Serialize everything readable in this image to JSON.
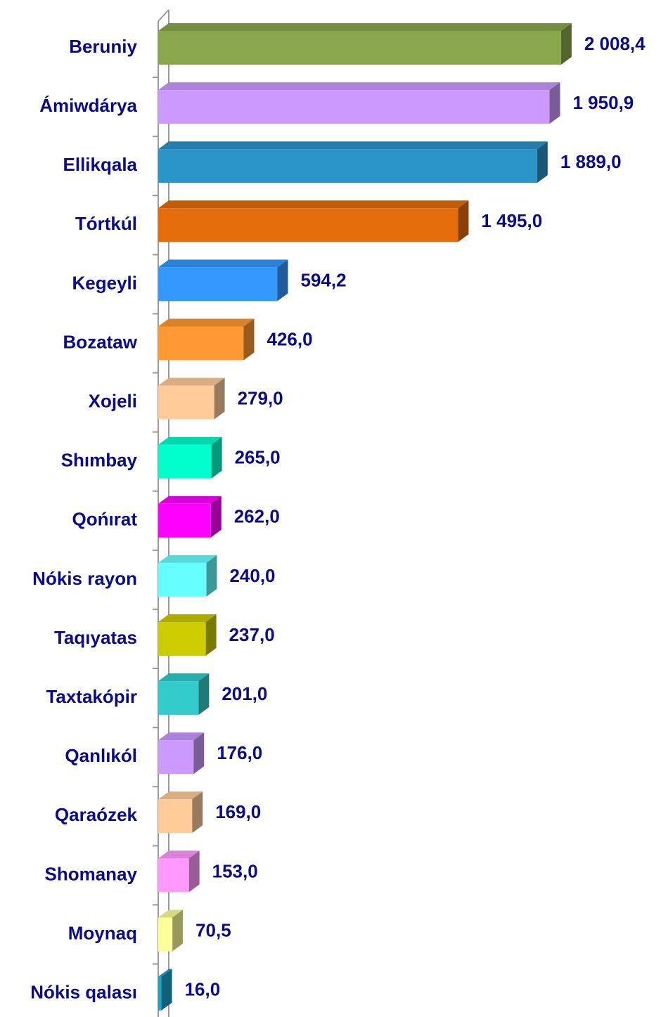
{
  "chart_data": {
    "type": "bar",
    "orientation": "horizontal",
    "categories": [
      "Beruniy",
      "Ámiwdárya",
      "Ellikqala",
      "Tórtkúl",
      "Kegeyli",
      "Bozataw",
      "Xojeli",
      "Shımbay",
      "Qońırat",
      "Nókis rayon",
      "Taqıyatas",
      "Taxtakópir",
      "Qanlıkól",
      "Qaraózek",
      "Shomanay",
      "Moynaq",
      "Nókis qalası"
    ],
    "values": [
      2008.4,
      1950.9,
      1889.0,
      1495.0,
      594.2,
      426.0,
      279.0,
      265.0,
      262.0,
      240.0,
      237.0,
      201.0,
      176.0,
      169.0,
      153.0,
      70.5,
      16.0
    ],
    "value_labels": [
      "2 008,4",
      "1 950,9",
      "1 889,0",
      "1 495,0",
      "594,2",
      "426,0",
      "279,0",
      "265,0",
      "262,0",
      "240,0",
      "237,0",
      "201,0",
      "176,0",
      "169,0",
      "153,0",
      "70,5",
      "16,0"
    ],
    "colors": [
      "#8aa84b",
      "#cc99ff",
      "#2a93c8",
      "#e46c0a",
      "#3399ff",
      "#ff9933",
      "#ffcc99",
      "#00ffcc",
      "#ff00ff",
      "#66ffff",
      "#cccc00",
      "#33cccc",
      "#cc99ff",
      "#ffcc99",
      "#ff99ff",
      "#ffff99",
      "#1aa3c8"
    ],
    "xlim": [
      0,
      2100
    ]
  }
}
